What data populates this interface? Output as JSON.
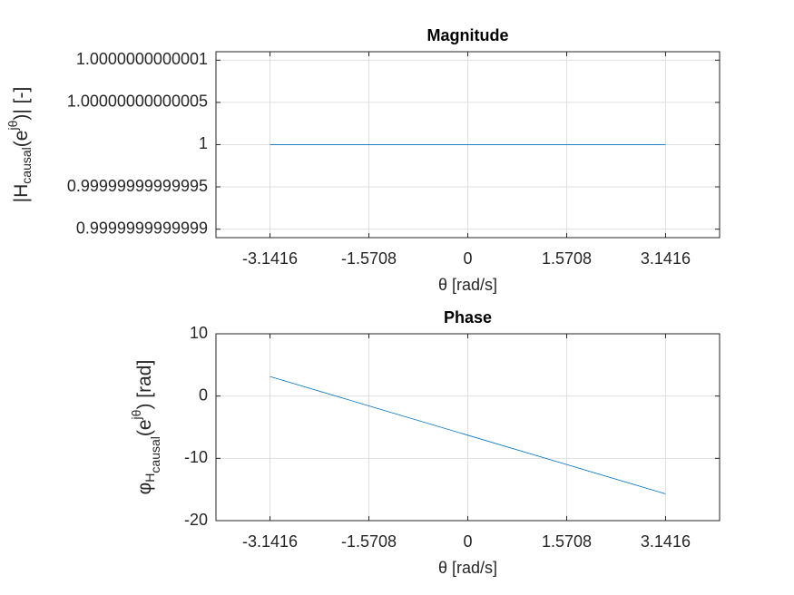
{
  "chart_data": [
    {
      "type": "line",
      "title": "Magnitude",
      "xlabel": "θ [rad/s]",
      "ylabel": [
        "|H",
        "causal",
        "(e",
        "jθ",
        ")| [-]"
      ],
      "x": [
        -3.14159,
        -1.5708,
        0,
        1.5708,
        3.14159
      ],
      "values": [
        1,
        1,
        1,
        1,
        1
      ],
      "color": "#0072bd",
      "xlim": [
        -4,
        4
      ],
      "xticks": [
        {
          "value": -3.14159,
          "label": "-3.1416"
        },
        {
          "value": -1.5708,
          "label": "-1.5708"
        },
        0,
        1.5708,
        {
          "value": 3.14159,
          "label": "3.1416"
        }
      ],
      "ylim": [
        0.99999999999989,
        1.00000000000011
      ],
      "yticks": [
        0.9999999999999,
        0.99999999999995,
        1,
        1.00000000000005,
        1.0000000000001
      ],
      "grid": true
    },
    {
      "type": "line",
      "title": "Phase",
      "xlabel": "θ [rad/s]",
      "ylabel": [
        "φ",
        "H",
        "causal",
        "(e",
        "jθ",
        ") [rad]"
      ],
      "x": [
        -3.14159,
        -1.5708,
        0,
        1.5708,
        3.14159
      ],
      "values": [
        3.1416,
        -1.5708,
        -6.2832,
        -10.9956,
        -15.708
      ],
      "color": "#0072bd",
      "xlim": [
        -4,
        4
      ],
      "xticks": [
        {
          "value": -3.14159,
          "label": "-3.1416"
        },
        {
          "value": -1.5708,
          "label": "-1.5708"
        },
        0,
        1.5708,
        {
          "value": 3.14159,
          "label": "3.1416"
        }
      ],
      "ylim": [
        -20,
        10
      ],
      "yticks": [
        -20,
        -10,
        0,
        10
      ],
      "grid": true
    }
  ]
}
